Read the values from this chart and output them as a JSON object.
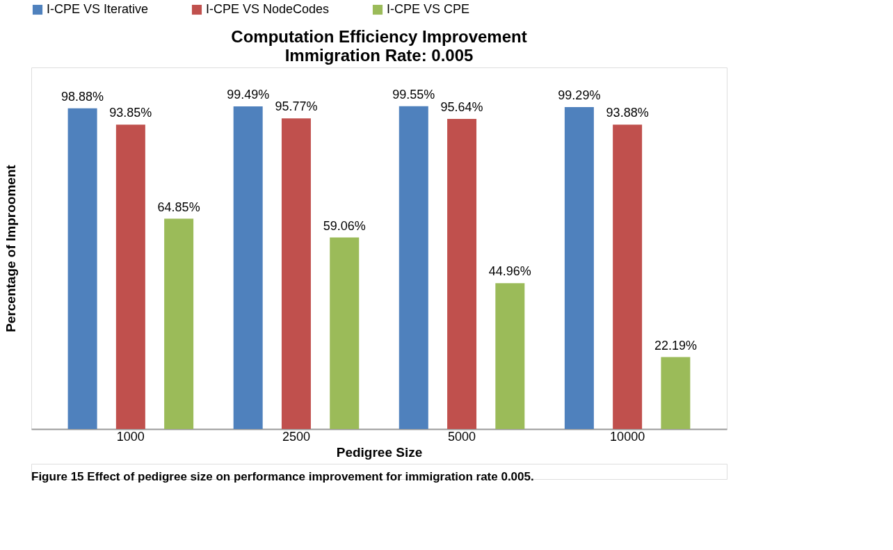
{
  "chart_data": {
    "type": "bar",
    "title": "Computation Efficiency Improvement",
    "subtitle": "Immigration Rate: 0.005",
    "xlabel": "Pedigree Size",
    "ylabel": "Percentage of Improoment",
    "categories": [
      "1000",
      "2500",
      "5000",
      "10000"
    ],
    "series": [
      {
        "name": "I-CPE VS Iterative",
        "color": "#4f81bd",
        "values": [
          98.88,
          99.49,
          99.55,
          99.29
        ],
        "value_labels": [
          "98.88%",
          "99.49%",
          "99.55%",
          "99.29%"
        ]
      },
      {
        "name": "I-CPE VS NodeCodes",
        "color": "#c0504d",
        "values": [
          93.85,
          95.77,
          95.64,
          93.88
        ],
        "value_labels": [
          "93.85%",
          "95.77%",
          "95.64%",
          "93.88%"
        ]
      },
      {
        "name": "I-CPE VS CPE",
        "color": "#9bbb59",
        "values": [
          64.85,
          59.06,
          44.96,
          22.19
        ],
        "value_labels": [
          "64.85%",
          "59.06%",
          "44.96%",
          "22.19%"
        ]
      }
    ],
    "legend": "top",
    "grid": false,
    "tick_labels": "x",
    "annotations": [
      "Figure 15 Effect of pedigree size on performance improvement for immigration rate 0.005."
    ]
  }
}
